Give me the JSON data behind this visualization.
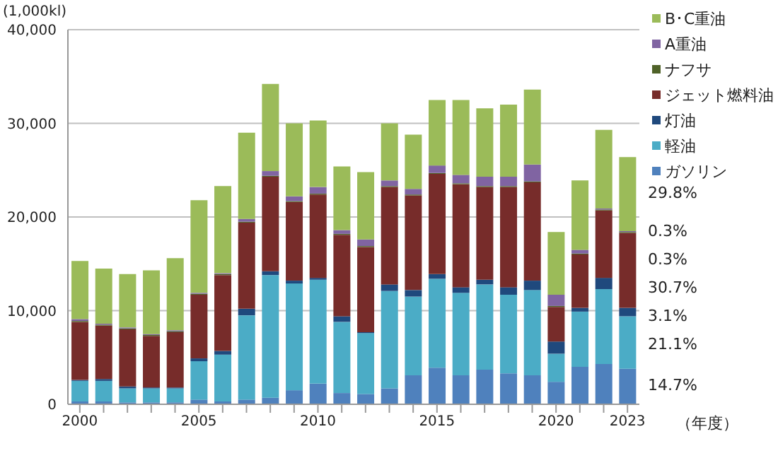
{
  "chart_data": {
    "type": "bar",
    "stacked": true,
    "ylabel": "(1,000kl)",
    "xlabel": "（年度）",
    "categories": [
      "2000",
      null,
      null,
      null,
      null,
      "2005",
      null,
      null,
      null,
      null,
      "2010",
      null,
      null,
      null,
      null,
      "2015",
      null,
      null,
      null,
      null,
      "2020",
      null,
      null,
      "2023"
    ],
    "series": [
      {
        "name": "ガソリン",
        "color": "#4f81bd",
        "values": [
          300,
          300,
          200,
          200,
          200,
          500,
          300,
          500,
          700,
          1500,
          2200,
          1200,
          1100,
          1700,
          3100,
          3900,
          3100,
          3700,
          3300,
          3100,
          2400,
          4000,
          4300,
          3800
        ]
      },
      {
        "name": "軽油",
        "color": "#4bacc6",
        "values": [
          2200,
          2200,
          1500,
          1500,
          1500,
          4100,
          5000,
          9000,
          13100,
          11400,
          11100,
          7600,
          6500,
          10400,
          8400,
          9500,
          8800,
          9100,
          8400,
          9100,
          3000,
          5900,
          8000,
          5600
        ]
      },
      {
        "name": "灯油",
        "color": "#1f497d",
        "values": [
          100,
          200,
          200,
          100,
          100,
          300,
          400,
          700,
          400,
          300,
          200,
          600,
          100,
          700,
          700,
          500,
          600,
          500,
          800,
          1000,
          1300,
          400,
          1200,
          900
        ]
      },
      {
        "name": "ジェット燃料油",
        "color": "#772c2a",
        "values": [
          6200,
          5700,
          6100,
          5500,
          5900,
          6800,
          8100,
          9200,
          10100,
          8400,
          8900,
          8700,
          9100,
          10400,
          10100,
          10700,
          11000,
          9900,
          10700,
          10500,
          3700,
          5700,
          7200,
          8000
        ]
      },
      {
        "name": "ナフサ",
        "color": "#4f6228",
        "values": [
          100,
          100,
          100,
          100,
          100,
          100,
          100,
          100,
          100,
          100,
          100,
          100,
          100,
          100,
          100,
          100,
          100,
          100,
          100,
          100,
          100,
          100,
          100,
          100
        ]
      },
      {
        "name": "A重油",
        "color": "#8064a2",
        "values": [
          200,
          100,
          100,
          100,
          100,
          100,
          100,
          300,
          500,
          500,
          700,
          400,
          700,
          600,
          600,
          800,
          900,
          1000,
          1000,
          1800,
          1200,
          400,
          100,
          100
        ]
      },
      {
        "name": "B･C重油",
        "color": "#9bbb59",
        "values": [
          6200,
          5900,
          5700,
          6800,
          7700,
          9900,
          9300,
          9200,
          9300,
          7800,
          7100,
          6800,
          7200,
          6100,
          5800,
          7000,
          8000,
          7300,
          7700,
          8000,
          6700,
          7400,
          8400,
          7900
        ]
      }
    ],
    "ylim": [
      0,
      40000
    ],
    "yticks": [
      {
        "value": 0,
        "label": "0"
      },
      {
        "value": 10000,
        "label": "10,000"
      },
      {
        "value": 20000,
        "label": "20,000"
      },
      {
        "value": 30000,
        "label": "30,000"
      },
      {
        "value": 40000,
        "label": "40,000"
      }
    ],
    "grid": "y",
    "legend": "top right",
    "annotations": [
      "29.8%",
      "0.3%",
      "0.3%",
      "30.7%",
      "3.1%",
      "21.1%",
      "14.7%"
    ]
  }
}
